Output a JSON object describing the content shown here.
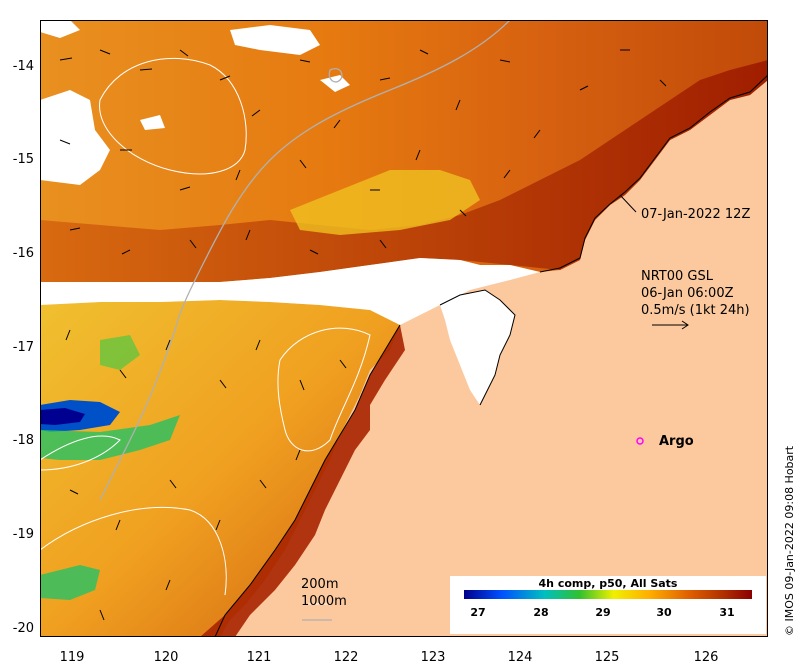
{
  "map": {
    "y_ticks": [
      "-14",
      "-15",
      "-16",
      "-17",
      "-18",
      "-19",
      "-20"
    ],
    "x_ticks": [
      "119",
      "120",
      "121",
      "122",
      "123",
      "124",
      "125",
      "126"
    ],
    "lon_range": [
      118.55,
      126.85
    ],
    "lat_range": [
      -20.1,
      -13.55
    ]
  },
  "annotations": {
    "date_label": "07-Jan-2022 12Z",
    "current_line1": "NRT00 GSL",
    "current_line2": "06-Jan 06:00Z",
    "current_line3": "0.5m/s (1kt 24h)",
    "argo_label": "Argo",
    "scale_200": "200m",
    "scale_1000": "1000m"
  },
  "colorbar": {
    "title": "4h comp, p50, All Sats",
    "ticks": [
      "27",
      "28",
      "29",
      "30",
      "31"
    ],
    "colors": [
      "#00008b",
      "#0055ff",
      "#00c8c8",
      "#33cc33",
      "#f0f000",
      "#ffb000",
      "#e06000",
      "#b03000",
      "#8b0000"
    ]
  },
  "copyright": "© IMOS 09-Jan-2022 09:08 Hobart",
  "colors": {
    "land": "#fcc99e",
    "no_data": "#ffffff",
    "argo_marker": "#ff00ff",
    "warm": "#a52a00",
    "mid": "#e88a10",
    "cool": "#f0c000"
  }
}
